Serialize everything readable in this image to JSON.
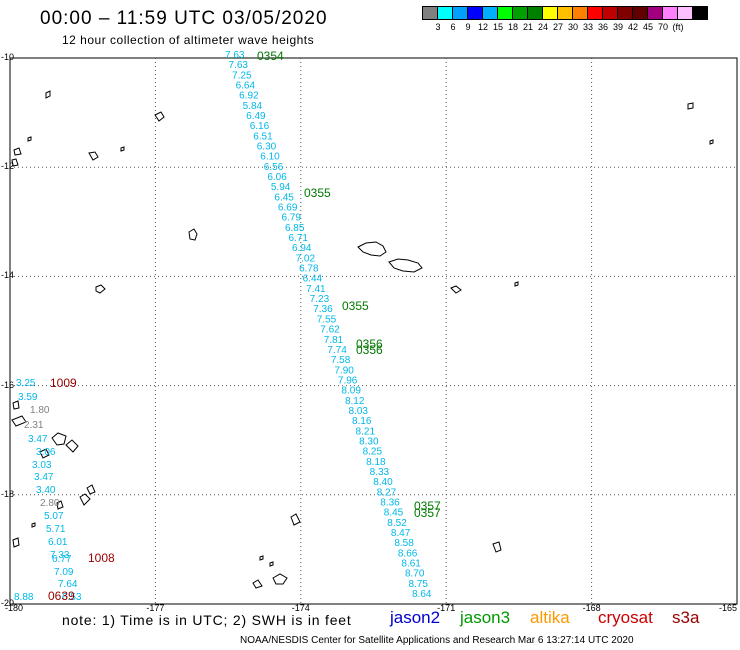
{
  "header": {
    "title": "00:00 – 11:59 UTC 03/05/2020",
    "subtitle": "12 hour collection of altimeter wave heights"
  },
  "colorbar": {
    "unit": "(ft)",
    "colors": [
      "#808080",
      "#00ffff",
      "#00a0ff",
      "#0000ff",
      "#00b0ff",
      "#00ff00",
      "#00a000",
      "#008000",
      "#ffff00",
      "#ffc000",
      "#ff8000",
      "#ff0000",
      "#c00000",
      "#800000",
      "#600000",
      "#a00080",
      "#ff80ff",
      "#ffc0ff",
      "#000000"
    ],
    "labels": [
      "3",
      "6",
      "9",
      "12",
      "15",
      "18",
      "21",
      "24",
      "27",
      "30",
      "33",
      "36",
      "39",
      "42",
      "45",
      "70"
    ]
  },
  "axes": {
    "y_labels": [
      "-10",
      "-12",
      "-14",
      "-16",
      "-18",
      "-20"
    ],
    "x_labels": [
      "-180",
      "-177",
      "-174",
      "-171",
      "-168",
      "-165"
    ]
  },
  "tracks": {
    "jason3_main": {
      "times": [
        "0354",
        "0355",
        "0355",
        "0356",
        "0356",
        "0357",
        "0357"
      ],
      "values": [
        "7.63",
        "7.63",
        "7.25",
        "6.64",
        "6.92",
        "5.84",
        "6.49",
        "6.16",
        "6.51",
        "6.30",
        "6.10",
        "6.56",
        "6.06",
        "5.94",
        "6.45",
        "6.69",
        "6.79",
        "6.85",
        "6.71",
        "6.94",
        "7.02",
        "6.78",
        "6.44",
        "7.41",
        "7.23",
        "7.36",
        "7.55",
        "7.62",
        "7.81",
        "7.74",
        "7.58",
        "7.90",
        "7.96",
        "8.09",
        "8.12",
        "8.03",
        "8.16",
        "8.21",
        "8.30",
        "8.25",
        "8.18",
        "8.33",
        "8.40",
        "8.27",
        "8.36",
        "8.45",
        "8.52",
        "8.47",
        "8.58",
        "8.66",
        "8.61",
        "8.70",
        "8.75",
        "8.64"
      ]
    },
    "west_track": {
      "times": [
        "1009",
        "1008",
        "0639"
      ],
      "values": [
        "3.25",
        "3.59",
        "1.80",
        "2.31",
        "3.47",
        "3.06",
        "3.03",
        "3.47",
        "3.40",
        "2.80",
        "5.07",
        "5.71",
        "6.01",
        "7.33",
        "6.77",
        "7.09",
        "7.64",
        "8.88",
        "6.53"
      ]
    }
  },
  "note": "note:  1) Time is in UTC;  2) SWH is in feet",
  "satellites": [
    {
      "name": "jason2",
      "color": "#0000cc"
    },
    {
      "name": "jason3",
      "color": "#009900"
    },
    {
      "name": "altika",
      "color": "#ff9900"
    },
    {
      "name": "cryosat",
      "color": "#cc0000"
    },
    {
      "name": "s3a",
      "color": "#990000"
    }
  ],
  "credit": "NOAA/NESDIS Center for Satellite Applications and Research    Mar  6 13:27:14 UTC 2020"
}
